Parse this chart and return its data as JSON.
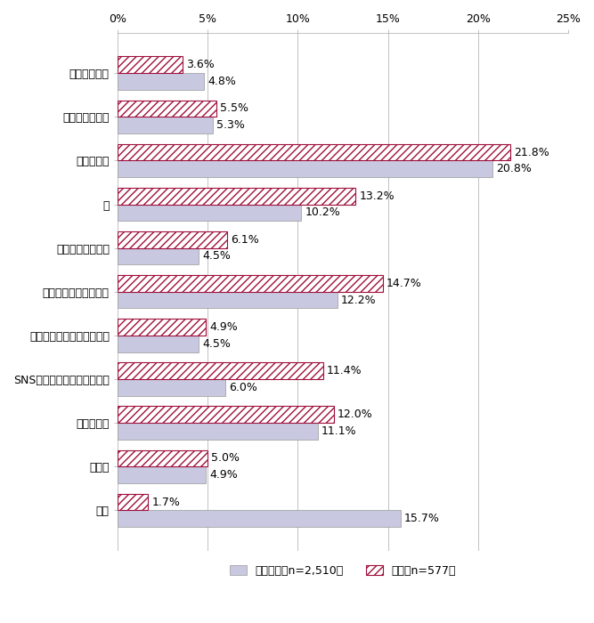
{
  "categories": [
    "（元）配偶者",
    "（元）交際相手",
    "友人・知人",
    "親",
    "その他家族・親族",
    "職場・バイト先関係者",
    "学校・大学の教員・コーチ",
    "SNS・ネットで知り合った人",
    "知らない人",
    "その他",
    "不明"
  ],
  "series1_values": [
    4.8,
    5.3,
    20.8,
    10.2,
    4.5,
    12.2,
    4.5,
    6.0,
    11.1,
    4.9,
    15.7
  ],
  "series2_values": [
    3.6,
    5.5,
    21.8,
    13.2,
    6.1,
    14.7,
    4.9,
    11.4,
    12.0,
    5.0,
    1.7
  ],
  "series1_label": "電話相談（n=2,510）",
  "series2_label": "面談（n=577）",
  "series1_color": "#c8c8e0",
  "series2_hatch_color": "#a0103c",
  "xlim": [
    0,
    25
  ],
  "xticks": [
    0,
    5,
    10,
    15,
    20,
    25
  ],
  "xticklabels": [
    "0%",
    "5%",
    "10%",
    "15%",
    "20%",
    "25%"
  ],
  "bar_height": 0.38,
  "hatch_pattern": "////",
  "label_fontsize": 9,
  "tick_fontsize": 9,
  "legend_fontsize": 9
}
